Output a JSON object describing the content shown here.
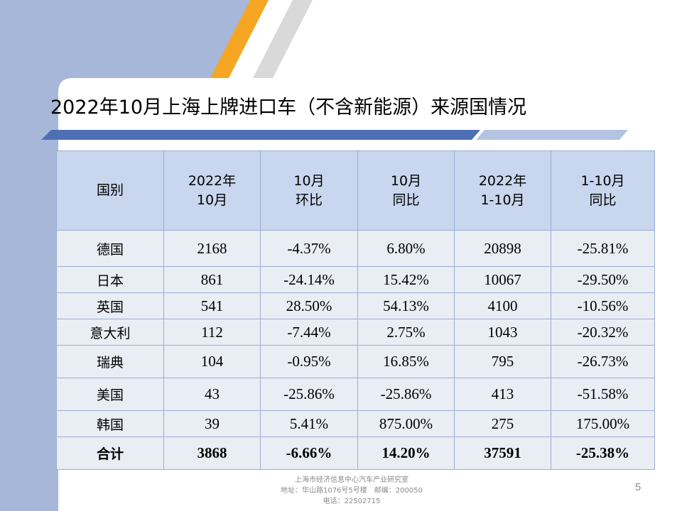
{
  "slide": {
    "title": "2022年10月上海上牌进口车（不含新能源）来源国情况",
    "page_number": "5",
    "colors": {
      "accent_blue": "#a7b7d9",
      "accent_orange": "#f5a623",
      "stripe_blue": "#4f6fb5",
      "header_fill": "#c8d6ee",
      "row_fill": "#e9edf4"
    }
  },
  "table": {
    "headers": [
      [
        "国别"
      ],
      [
        "2022年",
        "10月"
      ],
      [
        "10月",
        "环比"
      ],
      [
        "10月",
        "同比"
      ],
      [
        "2022年",
        "1-10月"
      ],
      [
        "1-10月",
        "同比"
      ]
    ],
    "rows": [
      [
        "德国",
        "2168",
        "-4.37%",
        "6.80%",
        "20898",
        "-25.81%"
      ],
      [
        "日本",
        "861",
        "-24.14%",
        "15.42%",
        "10067",
        "-29.50%"
      ],
      [
        "英国",
        "541",
        "28.50%",
        "54.13%",
        "4100",
        "-10.56%"
      ],
      [
        "意大利",
        "112",
        "-7.44%",
        "2.75%",
        "1043",
        "-20.32%"
      ],
      [
        "瑞典",
        "104",
        "-0.95%",
        "16.85%",
        "795",
        "-26.73%"
      ],
      [
        "美国",
        "43",
        "-25.86%",
        "-25.86%",
        "413",
        "-51.58%"
      ],
      [
        "韩国",
        "39",
        "5.41%",
        "875.00%",
        "275",
        "175.00%"
      ]
    ],
    "total": [
      "合计",
      "3868",
      "-6.66%",
      "14.20%",
      "37591",
      "-25.38%"
    ]
  },
  "footer": {
    "line1": "上海市经济信息中心汽车产业研究室",
    "line2": "地址：华山路1076号5号楼　邮编：200050",
    "line3": "电话：22502715"
  }
}
